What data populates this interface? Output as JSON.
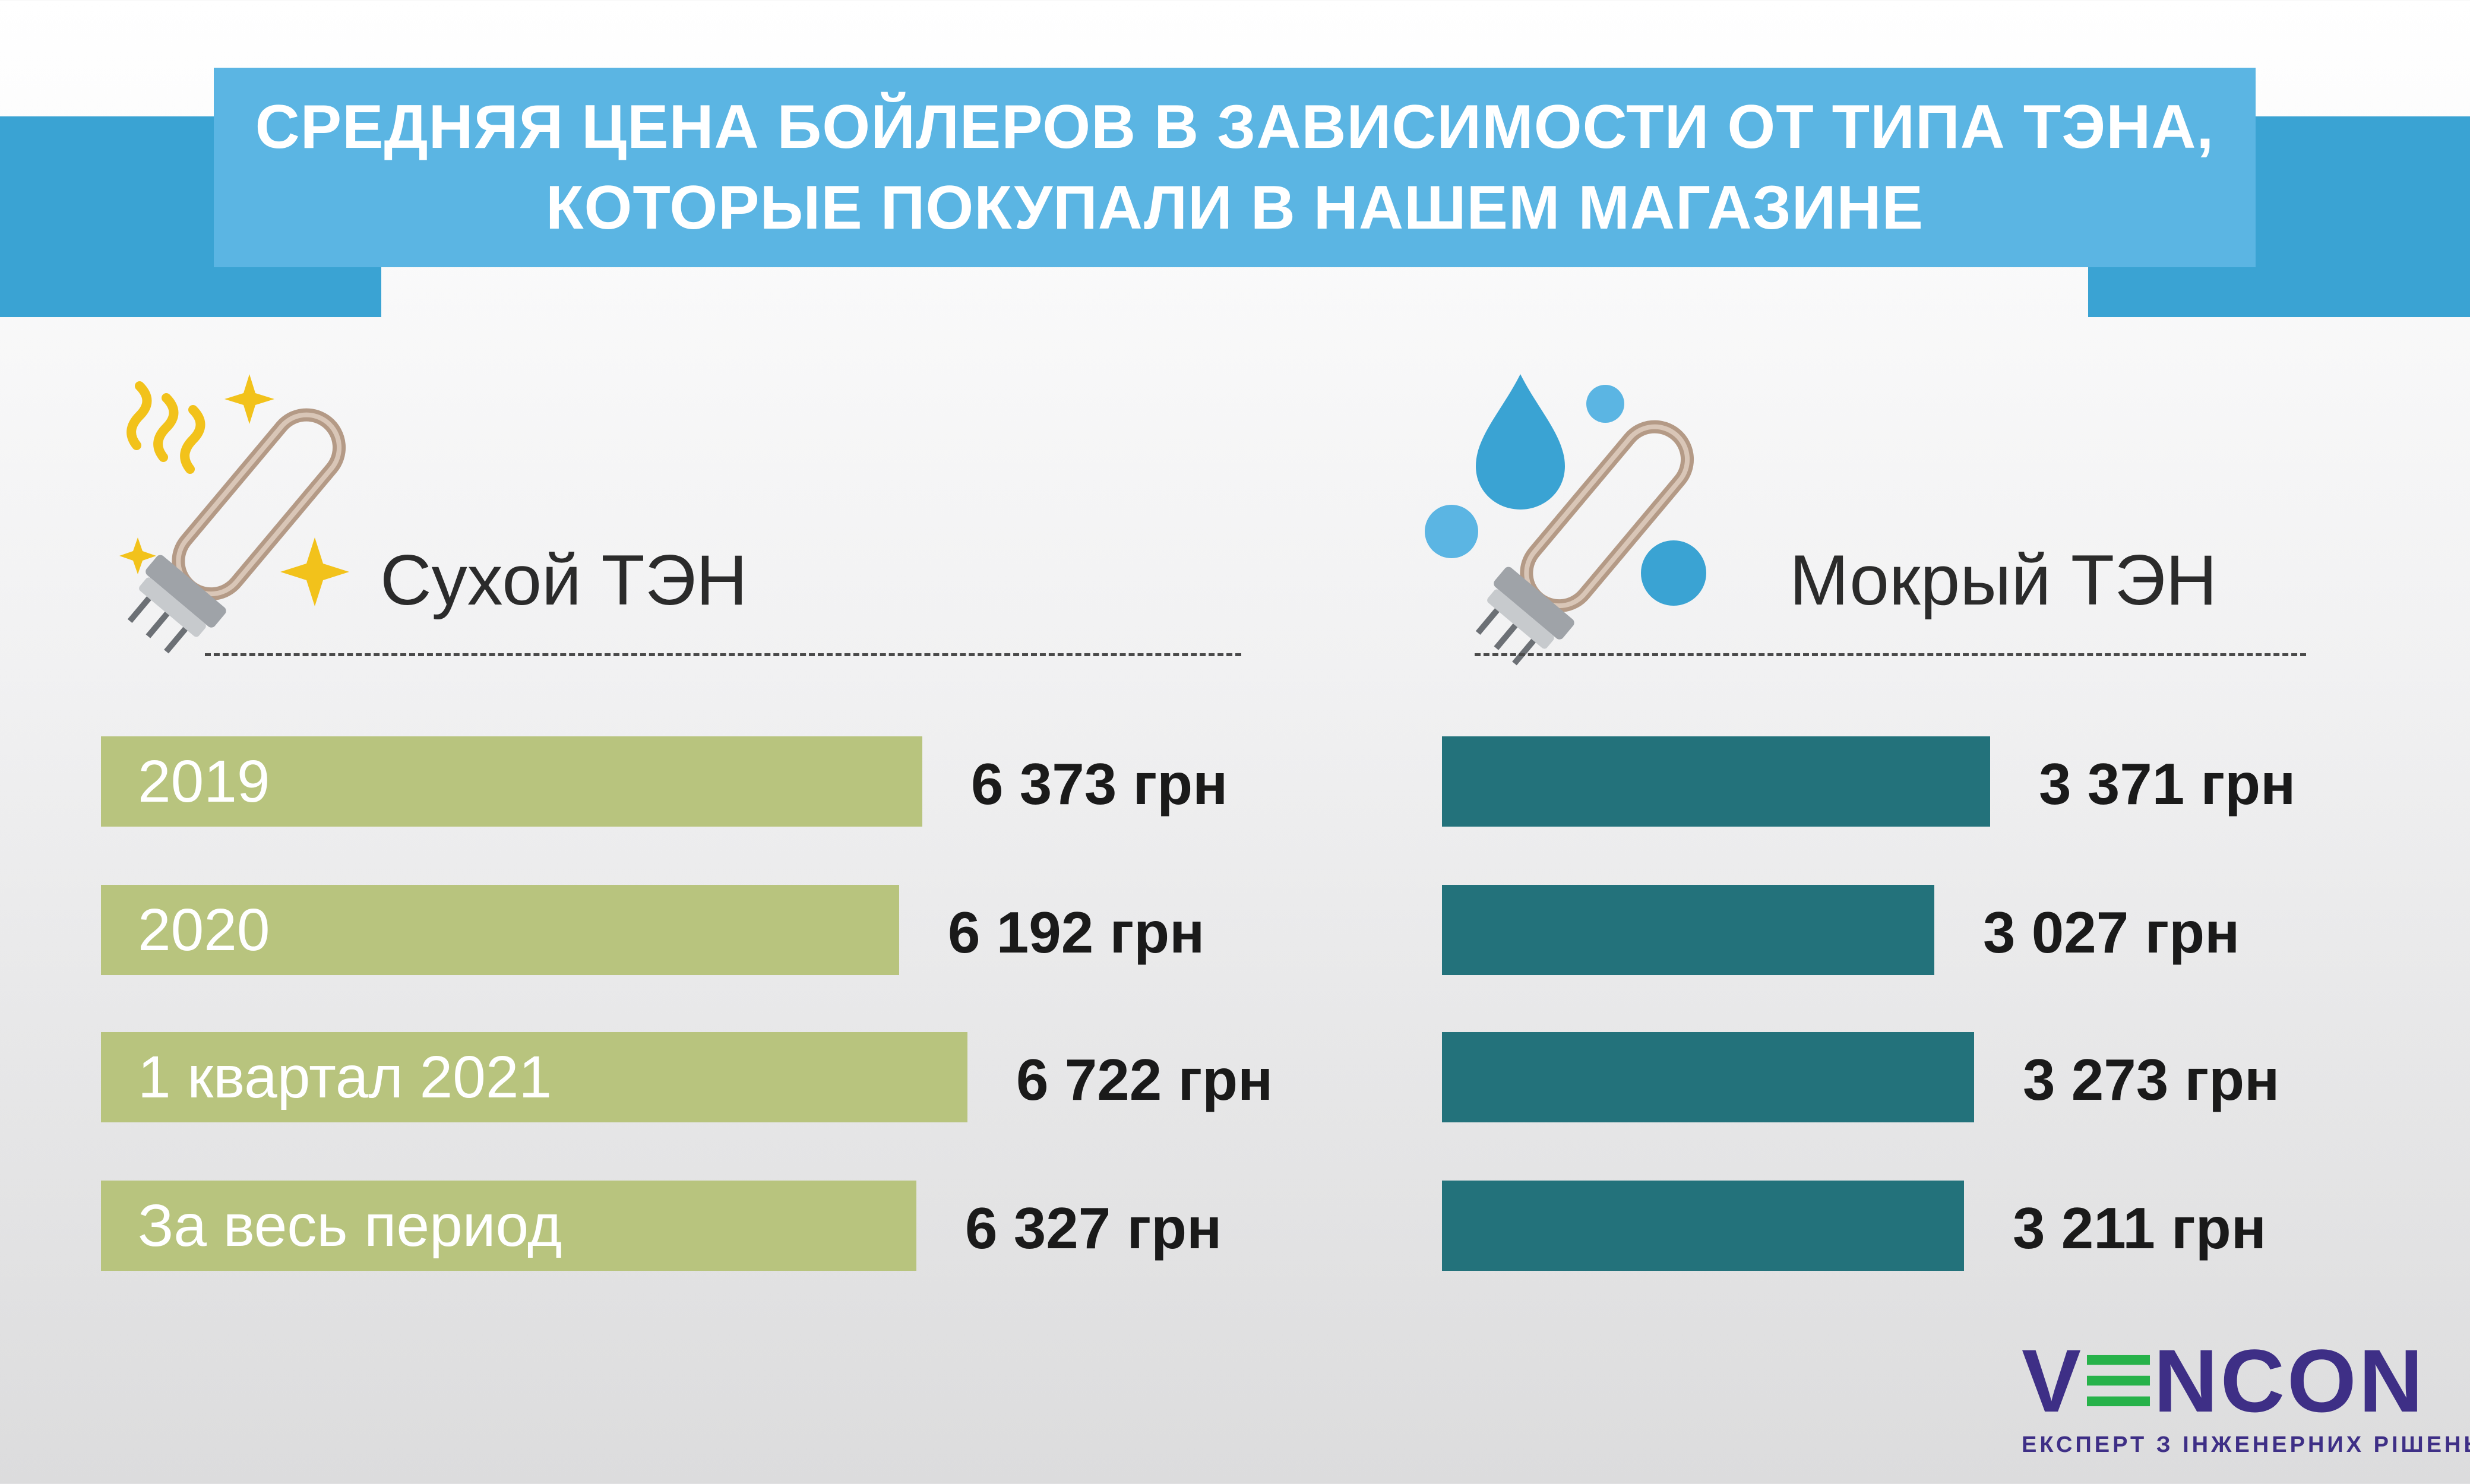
{
  "header": {
    "line1": "СРЕДНЯЯ ЦЕНА БОЙЛЕРОВ В ЗАВИСИМОСТИ ОТ ТИПА ТЭНА,",
    "line2": "КОТОРЫЕ ПОКУПАЛИ В НАШЕМ МАГАЗИНЕ"
  },
  "colors": {
    "dry_bar": "#b8c47e",
    "wet_bar": "#23727b",
    "title_box": "#5bb5e3",
    "title_band": "#3aa3d3",
    "logo": "#3e2f86",
    "logo_accent": "#27b24a"
  },
  "icons": {
    "dry": [
      "heating-element-icon",
      "sparkle-icon",
      "heat-waves-icon"
    ],
    "wet": [
      "heating-element-icon",
      "water-drop-icon",
      "bubble-icon"
    ]
  },
  "chart_data": [
    {
      "type": "bar",
      "orientation": "horizontal",
      "title": "Сухой ТЭН",
      "categories": [
        "2019",
        "2020",
        "1 квартал 2021",
        "За весь период"
      ],
      "values": [
        6373,
        6192,
        6722,
        6327
      ],
      "value_labels": [
        "6 373 грн",
        "6 192 грн",
        "6 722 грн",
        "6 327 грн"
      ],
      "unit": "грн",
      "color": "#b8c47e"
    },
    {
      "type": "bar",
      "orientation": "horizontal",
      "title": "Мокрый ТЭН",
      "categories": [
        "2019",
        "2020",
        "1 квартал 2021",
        "За весь период"
      ],
      "values": [
        3371,
        3027,
        3273,
        3211
      ],
      "value_labels": [
        "3 371 грн",
        "3 027 грн",
        "3 273 грн",
        "3 211 грн"
      ],
      "unit": "грн",
      "color": "#23727b"
    }
  ],
  "logo": {
    "main_v": "V",
    "main_rest": "NCON",
    "tagline": "ЕКСПЕРТ З ІНЖЕНЕРНИХ РІШЕНЬ"
  }
}
